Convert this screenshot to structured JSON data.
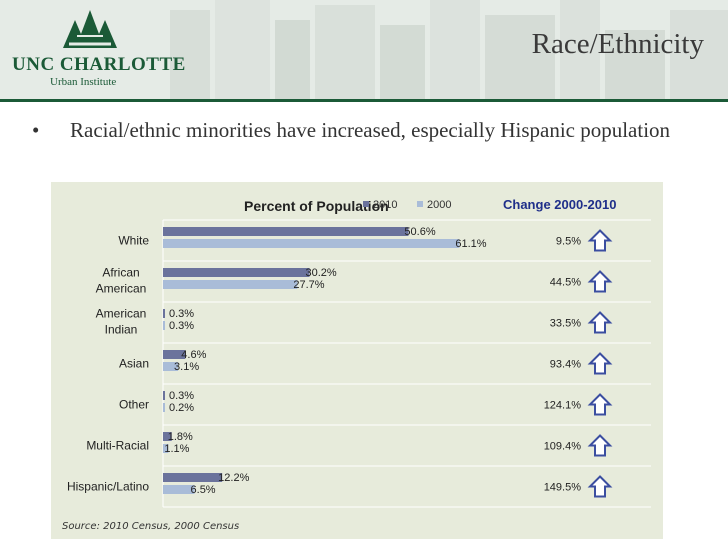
{
  "header": {
    "logo_name": "UNC CHARLOTTE",
    "logo_sub": "Urban Institute",
    "slide_title": "Race/Ethnicity"
  },
  "bullet": {
    "symbol": "•",
    "text": "Racial/ethnic minorities have increased, especially Hispanic population"
  },
  "chart_data": {
    "type": "bar",
    "orientation": "horizontal",
    "title": "Percent of Population",
    "categories": [
      "White",
      "African American",
      "American Indian",
      "Asian",
      "Other",
      "Multi-Racial",
      "Hispanic/Latino"
    ],
    "series": [
      {
        "name": "2010",
        "color": "#6b739c",
        "values": [
          50.6,
          30.2,
          0.3,
          4.6,
          0.3,
          1.8,
          12.2
        ],
        "labels": [
          "50.6%",
          "30.2%",
          "0.3%",
          "4.6%",
          "0.3%",
          "1.8%",
          "12.2%"
        ]
      },
      {
        "name": "2000",
        "color": "#a9bcd8",
        "values": [
          61.1,
          27.7,
          0.3,
          3.1,
          0.2,
          1.1,
          6.5
        ],
        "labels": [
          "61.1%",
          "27.7%",
          "0.3%",
          "3.1%",
          "0.2%",
          "1.1%",
          "6.5%"
        ]
      }
    ],
    "xlim": [
      0,
      100
    ],
    "legend": [
      "2010",
      "2000"
    ],
    "legend_position": "top",
    "change_column": {
      "title": "Change 2000-2010",
      "values": [
        "9.5%",
        "44.5%",
        "33.5%",
        "93.4%",
        "124.1%",
        "109.4%",
        "149.5%"
      ],
      "arrow_icon": "up-arrow-icon",
      "arrow_color": "#3b4ea0"
    }
  },
  "source": "Source: 2010 Census, 2000 Census",
  "colors": {
    "brand_green": "#1b5a37",
    "panel_bg": "#e7ebdb",
    "grid": "#ffffff"
  }
}
